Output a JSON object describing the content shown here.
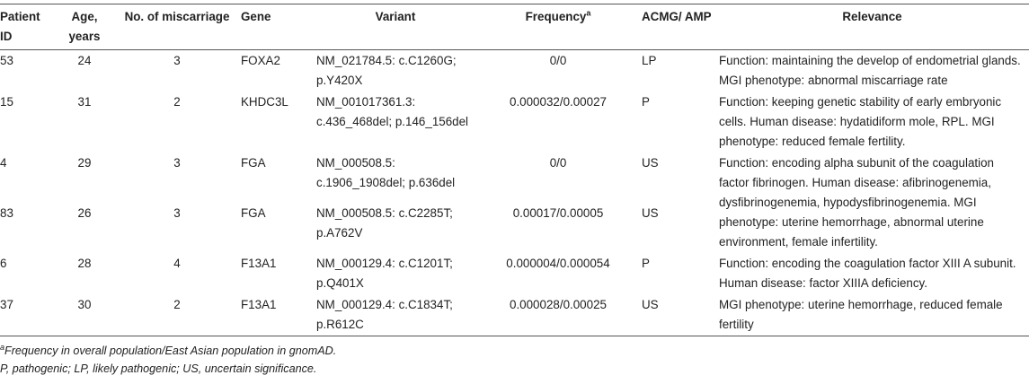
{
  "table": {
    "columns": [
      {
        "text": "Patient ID"
      },
      {
        "text": "Age, years"
      },
      {
        "text": "No. of miscarriage"
      },
      {
        "text": "Gene"
      },
      {
        "text": "Variant"
      },
      {
        "text": "Frequency",
        "sup": "a"
      },
      {
        "text": "ACMG/ AMP"
      },
      {
        "text": "Relevance"
      }
    ],
    "rows": [
      [
        "53",
        "24",
        "3",
        "FOXA2",
        "NM_021784.5: c.C1260G; p.Y420X",
        "0/0",
        "LP",
        "Function: maintaining the develop of endometrial glands. MGI phenotype: abnormal miscarriage rate"
      ],
      [
        "15",
        "31",
        "2",
        "KHDC3L",
        "NM_001017361.3: c.436_468del; p.146_156del",
        "0.000032/0.00027",
        "P",
        "Function: keeping genetic stability of early embryonic cells. Human disease: hydatidiform mole, RPL. MGI phenotype: reduced female fertility."
      ],
      [
        "4",
        "29",
        "3",
        "FGA",
        "NM_000508.5: c.1906_1908del; p.636del",
        "0/0",
        "US",
        "Function: encoding alpha subunit of the coagulation factor fibrinogen. Human disease: afibrinogenemia, dysfibrinogenemia, hypodysfibrinogenemia. MGI phenotype: uterine hemorrhage, abnormal uterine environment, female infertility."
      ],
      [
        "83",
        "26",
        "3",
        "FGA",
        "NM_000508.5: c.C2285T; p.A762V",
        "0.00017/0.00005",
        "US",
        ""
      ],
      [
        "6",
        "28",
        "4",
        "F13A1",
        "NM_000129.4: c.C1201T; p.Q401X",
        "0.000004/0.000054",
        "P",
        "Function: encoding the coagulation factor XIII A subunit. Human disease: factor XIIIA deficiency."
      ],
      [
        "37",
        "30",
        "2",
        "F13A1",
        "NM_000129.4: c.C1834T; p.R612C",
        "0.000028/0.00025",
        "US",
        "MGI phenotype: uterine hemorrhage, reduced female fertility"
      ]
    ]
  },
  "footnotes": [
    {
      "sup": "a",
      "text": "Frequency in overall population/East Asian population in gnomAD."
    },
    {
      "text": "P, pathogenic; LP, likely pathogenic; US, uncertain significance."
    }
  ]
}
